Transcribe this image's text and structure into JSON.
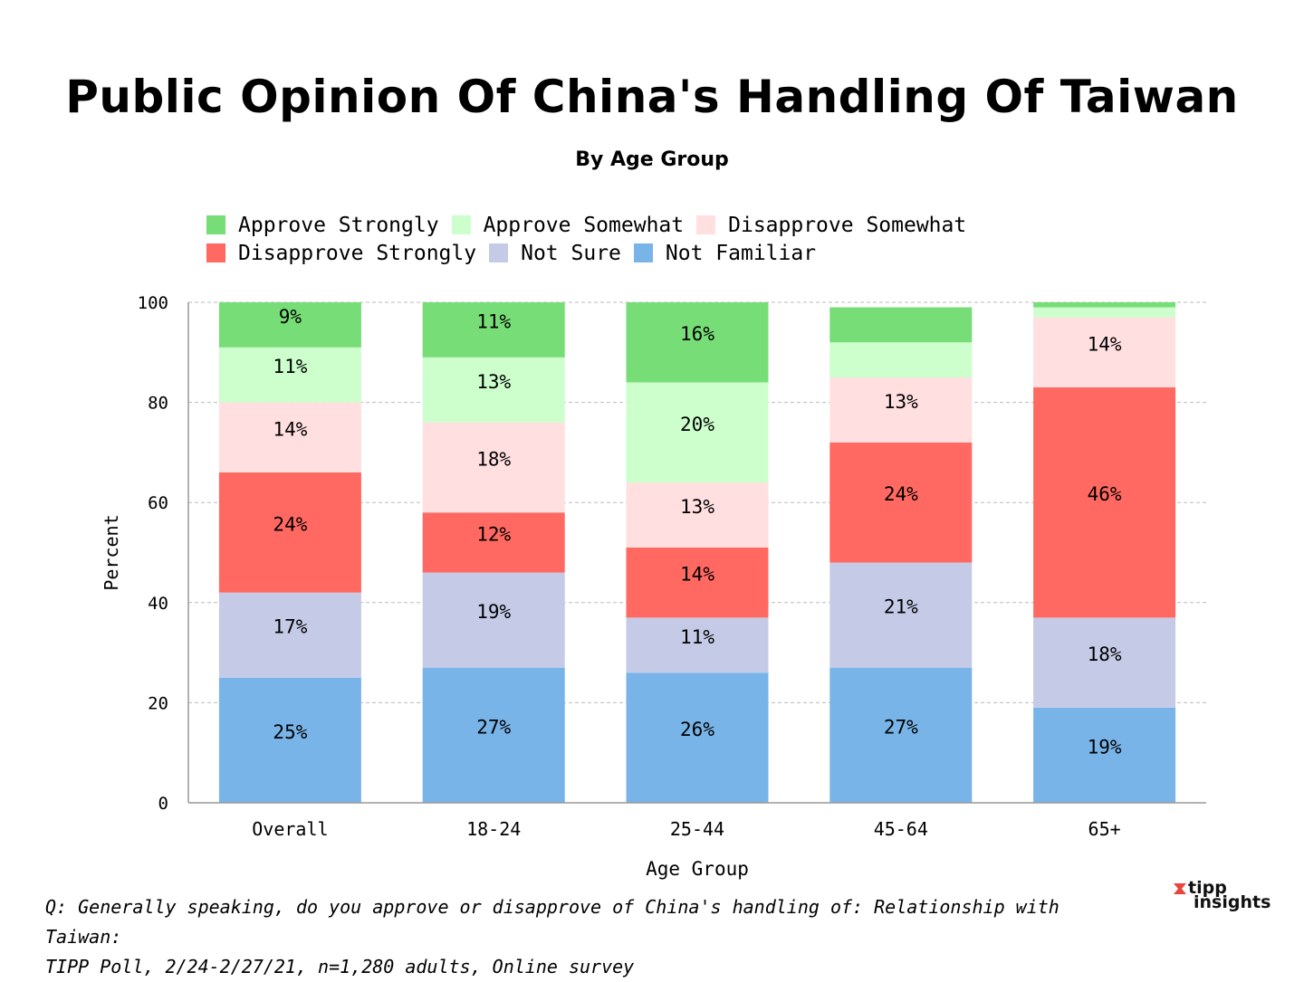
{
  "chart_data": {
    "type": "bar",
    "stacked": true,
    "title": "Public Opinion Of China's Handling Of Taiwan",
    "subtitle": "By Age Group",
    "xlabel": "Age Group",
    "ylabel": "Percent",
    "ylim": [
      0,
      100
    ],
    "yticks": [
      0,
      20,
      40,
      60,
      80,
      100
    ],
    "grid": true,
    "legend_position": "top",
    "categories": [
      "Overall",
      "18-24",
      "25-44",
      "45-64",
      "65+"
    ],
    "series": [
      {
        "name": "Not Familiar",
        "color": "#78b4e8",
        "values": [
          25,
          27,
          26,
          27,
          19
        ],
        "labels": [
          "25%",
          "27%",
          "26%",
          "27%",
          "19%"
        ]
      },
      {
        "name": "Not Sure",
        "color": "#c5cbe7",
        "values": [
          17,
          19,
          11,
          21,
          18
        ],
        "labels": [
          "17%",
          "19%",
          "11%",
          "21%",
          "18%"
        ]
      },
      {
        "name": "Disapprove Strongly",
        "color": "#ff6961",
        "values": [
          24,
          12,
          14,
          24,
          46
        ],
        "labels": [
          "24%",
          "12%",
          "14%",
          "24%",
          "46%"
        ]
      },
      {
        "name": "Disapprove Somewhat",
        "color": "#ffdfe0",
        "values": [
          14,
          18,
          13,
          13,
          14
        ],
        "labels": [
          "14%",
          "18%",
          "13%",
          "13%",
          "14%"
        ]
      },
      {
        "name": "Approve Somewhat",
        "color": "#ccffcc",
        "values": [
          11,
          13,
          20,
          7,
          2
        ],
        "labels": [
          "11%",
          "13%",
          "20%",
          "",
          ""
        ]
      },
      {
        "name": "Approve Strongly",
        "color": "#77dd77",
        "values": [
          9,
          11,
          16,
          7,
          1
        ],
        "labels": [
          "9%",
          "11%",
          "16%",
          "",
          ""
        ]
      }
    ],
    "legend_order": [
      "Approve Strongly",
      "Approve Somewhat",
      "Disapprove Somewhat",
      "Disapprove Strongly",
      "Not Sure",
      "Not Familiar"
    ]
  },
  "footnote": {
    "line1": "Q:  Generally speaking, do you approve or disapprove of China's handling of: Relationship with Taiwan:",
    "line2": "TIPP Poll, 2/24-2/27/21, n=1,280 adults, Online survey"
  },
  "brand": {
    "line1": "tipp",
    "line2": "insights",
    "accent_color": "#e8453c"
  }
}
